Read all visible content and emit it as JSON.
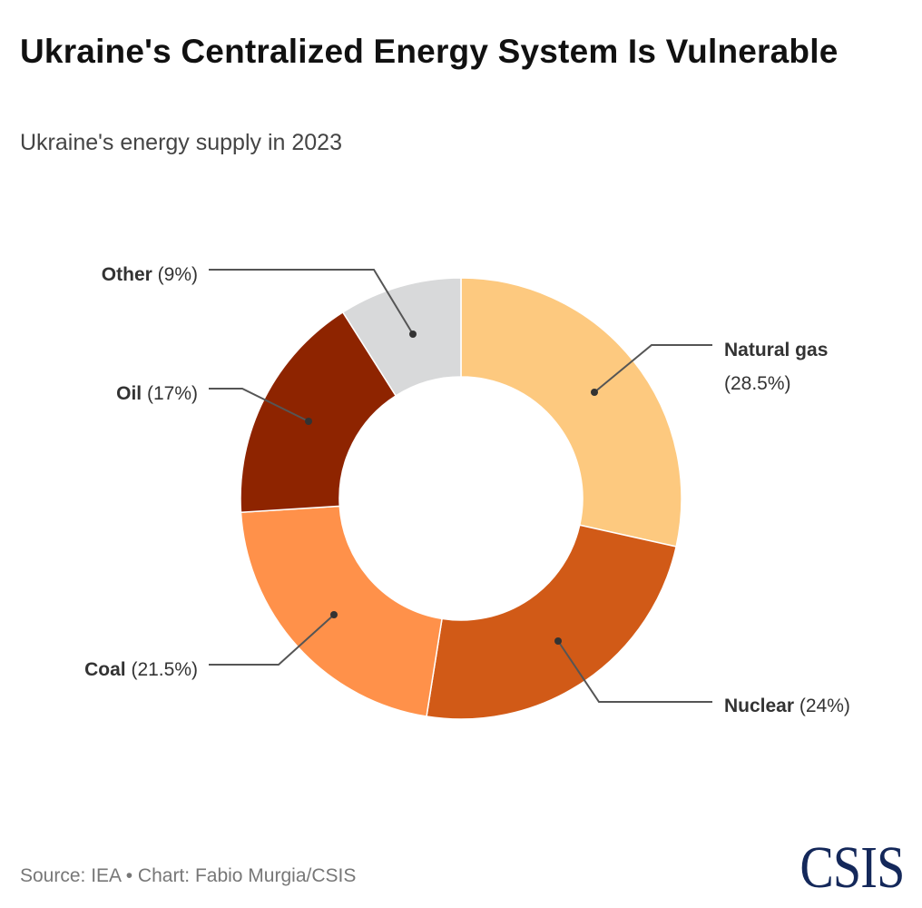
{
  "title": "Ukraine's Centralized Energy System Is Vulnerable",
  "subtitle": "Ukraine's energy supply in 2023",
  "source": "Source: IEA • Chart: Fabio Murgia/CSIS",
  "logo": "CSIS",
  "chart_data": {
    "type": "pie",
    "donut": true,
    "start": "12 o'clock, clockwise",
    "unit": "%",
    "slices": [
      {
        "name": "Natural gas",
        "value": 28.5,
        "label": "(28.5%)",
        "color": "#FDC97F"
      },
      {
        "name": "Nuclear",
        "value": 24,
        "label": "(24%)",
        "color": "#D15A17"
      },
      {
        "name": "Coal",
        "value": 21.5,
        "label": "(21.5%)",
        "color": "#FF914A"
      },
      {
        "name": "Oil",
        "value": 17,
        "label": "(17%)",
        "color": "#8E2400"
      },
      {
        "name": "Other",
        "value": 9,
        "label": "(9%)",
        "color": "#D8D9DA"
      }
    ]
  }
}
